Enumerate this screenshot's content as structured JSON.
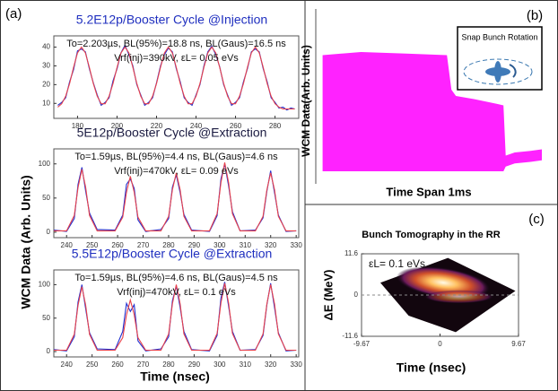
{
  "panel_labels": [
    "(a)",
    "(b)",
    "(c)"
  ],
  "panel_a": {
    "y_label": "WCM Data (Arb. Units)",
    "x_label": "Time (nsec)"
  },
  "chart_data": [
    {
      "type": "line",
      "title": "5.2E12p/Booster Cycle  @Injection",
      "title_color": "#1f2fbf",
      "annotations": [
        "To=2.203µs, BL(95%)=18.8 ns, BL(Gaus)=16.5 ns",
        "Vrf(inj)=390kV,  εL= 0.05 eVs"
      ],
      "x": [
        170,
        172,
        174,
        176,
        178,
        180,
        182,
        184,
        186,
        188,
        190,
        192,
        194,
        196,
        198,
        200,
        202,
        204,
        206,
        208,
        210,
        212,
        214,
        216,
        218,
        220,
        222,
        224,
        226,
        228,
        230,
        232,
        234,
        236,
        238,
        240,
        242,
        244,
        246,
        248,
        250,
        252,
        254,
        256,
        258,
        260,
        262,
        264,
        266,
        268,
        270,
        272,
        274,
        276,
        278,
        280,
        282,
        284,
        286,
        288,
        290
      ],
      "series": [
        {
          "color": "#1f2fd0",
          "values": [
            9,
            10.5,
            13,
            21.5,
            28,
            38,
            39,
            37.5,
            28.5,
            21,
            14.5,
            9,
            10.5,
            13,
            22,
            28.5,
            37,
            41,
            36,
            30,
            20,
            14.5,
            9,
            10.5,
            13,
            21,
            30,
            36,
            39.5,
            37.5,
            28.5,
            21.5,
            13,
            10.5,
            9,
            14.5,
            20,
            30,
            37.5,
            40.5,
            36,
            29.5,
            20,
            14.5,
            9,
            10.5,
            13,
            21.5,
            28.5,
            37.5,
            39,
            37.5,
            28.5,
            21.5,
            13,
            10.5,
            7.5,
            8,
            6.5,
            7.5,
            7
          ]
        },
        {
          "color": "#e8404a",
          "values": [
            8,
            9.8,
            13.8,
            20.6,
            29.2,
            36.9,
            40,
            36.9,
            29.2,
            20.6,
            13.8,
            9.8,
            9.8,
            13.8,
            20.6,
            29.2,
            36.9,
            40,
            36.9,
            29.2,
            20.6,
            13.8,
            9.8,
            9.8,
            13.8,
            20.6,
            29.2,
            36.9,
            40,
            36.9,
            29.2,
            20.6,
            13.8,
            9.8,
            9.8,
            13.8,
            20.6,
            29.2,
            36.9,
            40,
            36.9,
            29.2,
            20.6,
            13.8,
            9.8,
            9.8,
            13.8,
            20.6,
            29.2,
            36.9,
            40,
            36.9,
            29.2,
            20.6,
            13.8,
            9.8,
            8,
            7,
            7,
            7,
            7
          ]
        }
      ],
      "xlim": [
        168,
        292
      ],
      "ylim": [
        2,
        46
      ],
      "xticks": [
        180,
        200,
        220,
        240,
        260,
        280
      ],
      "yticks": [
        10,
        20,
        30,
        40
      ]
    },
    {
      "type": "line",
      "title": "5E12p/Booster Cycle @Extraction",
      "title_color": "#1a1a40",
      "annotations": [
        "To=1.59µs, BL(95%)=4.4 ns, BL(Gaus)=4.6 ns",
        "Vrf(inj)=470kV,  εL= 0.09 eVs"
      ],
      "x": [
        235,
        240,
        243,
        244.5,
        246,
        247.5,
        249,
        252,
        259,
        262,
        263.5,
        265,
        266.5,
        268,
        271,
        277,
        280,
        281.5,
        283,
        284.5,
        286,
        289,
        296,
        299,
        300.5,
        302,
        303.5,
        305,
        308,
        314,
        317,
        318.5,
        320,
        321.5,
        323,
        326,
        330
      ],
      "series": [
        {
          "color": "#1f2fd0",
          "values": [
            3,
            1,
            20,
            70,
            95,
            60,
            28,
            4,
            3,
            25,
            70,
            78,
            64,
            18,
            1,
            4,
            20,
            66,
            84,
            58,
            26,
            3,
            1,
            24,
            78,
            100,
            68,
            30,
            2,
            3,
            21,
            60,
            90,
            58,
            25,
            1,
            2
          ]
        },
        {
          "color": "#e8404a",
          "values": [
            2,
            2,
            24.5,
            65.6,
            92,
            65.6,
            24.5,
            2,
            2,
            22,
            58.6,
            82,
            58.6,
            22,
            2,
            2,
            23.3,
            62.1,
            87,
            62.1,
            23.3,
            2,
            2,
            27,
            72.7,
            102,
            72.7,
            27,
            2,
            2,
            23.3,
            62.1,
            87,
            62.1,
            23.3,
            2,
            2
          ]
        }
      ],
      "xlim": [
        235,
        331
      ],
      "ylim": [
        -8,
        122
      ],
      "xticks": [
        240,
        250,
        260,
        270,
        280,
        290,
        300,
        310,
        320,
        330
      ],
      "yticks": [
        0,
        50,
        100
      ]
    },
    {
      "type": "line",
      "title": "5.5E12p/Booster Cycle @Extraction",
      "title_color": "#1f2fbf",
      "annotations": [
        "To=1.59µs, BL(95%)=4.6 ns, BL(Gaus)=4.5 ns",
        "Vrf(inj)=470kV,  εL= 0.1 eVs"
      ],
      "x": [
        235,
        240,
        243,
        244.5,
        246,
        247.5,
        249,
        252,
        259,
        262,
        263.5,
        265,
        266.5,
        268,
        271,
        277,
        280,
        281.5,
        283,
        284.5,
        286,
        289,
        296,
        299,
        300.5,
        302,
        303.5,
        305,
        308,
        314,
        317,
        318.5,
        320,
        321.5,
        323,
        326,
        330
      ],
      "series": [
        {
          "color": "#1f2fd0",
          "values": [
            3,
            1,
            22,
            74,
            100,
            64,
            28,
            4,
            3,
            30,
            72,
            60,
            70,
            16,
            1,
            4,
            22,
            76,
            98,
            66,
            30,
            3,
            1,
            24,
            80,
            104,
            68,
            30,
            2,
            3,
            24,
            70,
            102,
            66,
            28,
            1,
            2
          ]
        },
        {
          "color": "#e8404a",
          "values": [
            2,
            2,
            25.8,
            69.2,
            97,
            69.2,
            25.8,
            2,
            2,
            20.8,
            55,
            77,
            55,
            20.8,
            2,
            2,
            26.5,
            71.3,
            100,
            71.3,
            26.5,
            2,
            2,
            27,
            72.7,
            102,
            72.7,
            27,
            2,
            2,
            26.5,
            71.3,
            100,
            71.3,
            26.5,
            2,
            2
          ]
        }
      ],
      "xlim": [
        235,
        331
      ],
      "ylim": [
        -8,
        122
      ],
      "xticks": [
        240,
        250,
        260,
        270,
        280,
        290,
        300,
        310,
        320,
        330
      ],
      "yticks": [
        0,
        50,
        100
      ]
    },
    {
      "type": "area",
      "x_label": "Time Span 1ms",
      "y_label": "WCM Data(Arb. Units)",
      "inset_label": "Snap Bunch Rotation",
      "color": "#ff22ff",
      "x": [
        0.03,
        0.2,
        0.4,
        0.58,
        0.6,
        0.62,
        0.7,
        0.8,
        0.83,
        0.84,
        0.88,
        0.95,
        1.0
      ],
      "values": [
        82,
        84,
        83,
        82,
        60,
        56,
        54,
        51,
        50,
        18,
        20,
        21,
        22
      ],
      "lower": [
        8,
        8,
        8,
        8,
        8,
        8,
        8,
        8,
        8,
        11,
        13,
        14,
        15
      ],
      "xlim": [
        0,
        1
      ],
      "ylim": [
        0,
        100
      ]
    },
    {
      "type": "heatmap",
      "title": "Bunch Tomography  in the RR",
      "annotation": "εL= 0.1 eVs",
      "x_label": "Time (nsec)",
      "y_label": "ΔE (MeV)",
      "xlim": [
        -9.67,
        9.67
      ],
      "ylim": [
        -11.6,
        11.6
      ],
      "xticks": [
        -9.67,
        0,
        9.67
      ],
      "yticks": [
        11.6,
        0,
        -11.6
      ]
    }
  ]
}
